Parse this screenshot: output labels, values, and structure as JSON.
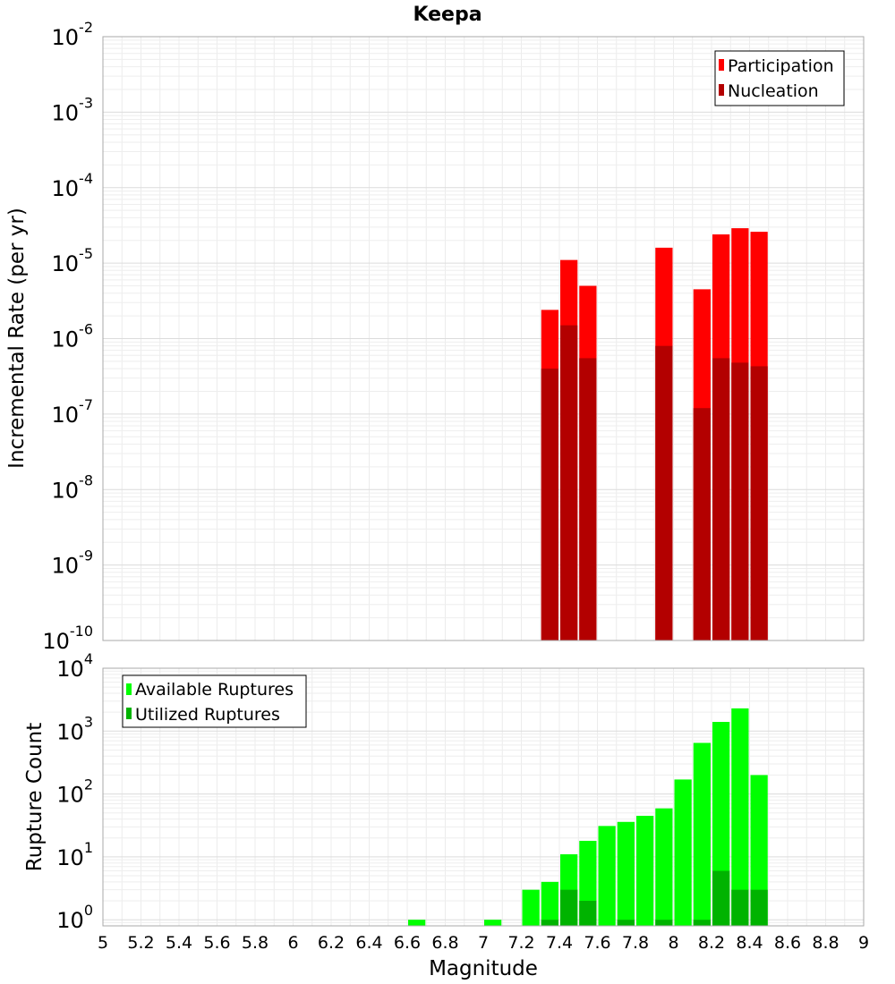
{
  "chart_data": {
    "title": "Keepa",
    "xlabel": "Magnitude",
    "xlim": [
      5,
      9
    ],
    "x_ticks": [
      "5",
      "5.2",
      "5.4",
      "5.6",
      "5.8",
      "6",
      "6.2",
      "6.4",
      "6.6",
      "6.8",
      "7",
      "7.2",
      "7.4",
      "7.6",
      "7.8",
      "8",
      "8.2",
      "8.4",
      "8.6",
      "8.8",
      "9"
    ],
    "panels": [
      {
        "type": "bar",
        "ylabel": "Incremental Rate (per yr)",
        "yscale": "log",
        "ylim": [
          1e-10,
          0.01
        ],
        "y_tick_exponents": [
          "-10",
          "-9",
          "-8",
          "-7",
          "-6",
          "-5",
          "-4",
          "-3",
          "-2"
        ],
        "grid": true,
        "legend_position": "top-right",
        "series": [
          {
            "name": "Participation",
            "color": "#ff0000",
            "x": [
              7.35,
              7.45,
              7.55,
              7.95,
              8.15,
              8.25,
              8.35,
              8.45
            ],
            "values": [
              2.4e-06,
              1.1e-05,
              5e-06,
              1.6e-05,
              4.5e-06,
              2.4e-05,
              2.9e-05,
              2.6e-05
            ]
          },
          {
            "name": "Nucleation",
            "color": "#b30000",
            "x": [
              7.35,
              7.45,
              7.55,
              7.95,
              8.15,
              8.25,
              8.35,
              8.45
            ],
            "values": [
              4e-07,
              1.5e-06,
              5.5e-07,
              8e-07,
              1.2e-07,
              5.5e-07,
              4.8e-07,
              4.3e-07
            ]
          }
        ]
      },
      {
        "type": "bar",
        "ylabel": "Rupture Count",
        "yscale": "log",
        "ylim": [
          0.8,
          10000
        ],
        "y_tick_exponents": [
          "0",
          "1",
          "2",
          "3",
          "4"
        ],
        "grid": true,
        "legend_position": "top-left",
        "series": [
          {
            "name": "Available Ruptures",
            "color": "#00ff00",
            "x": [
              6.65,
              7.05,
              7.25,
              7.35,
              7.45,
              7.55,
              7.65,
              7.75,
              7.85,
              7.95,
              8.05,
              8.15,
              8.25,
              8.35,
              8.45
            ],
            "values": [
              1,
              1,
              3,
              4,
              11,
              18,
              31,
              36,
              45,
              59,
              170,
              650,
              1400,
              2300,
              200
            ]
          },
          {
            "name": "Utilized Ruptures",
            "color": "#00b300",
            "x": [
              7.35,
              7.45,
              7.55,
              7.75,
              7.95,
              8.15,
              8.25,
              8.35,
              8.45
            ],
            "values": [
              1,
              3,
              2,
              1,
              1,
              1,
              6,
              3,
              3
            ]
          }
        ]
      }
    ]
  }
}
